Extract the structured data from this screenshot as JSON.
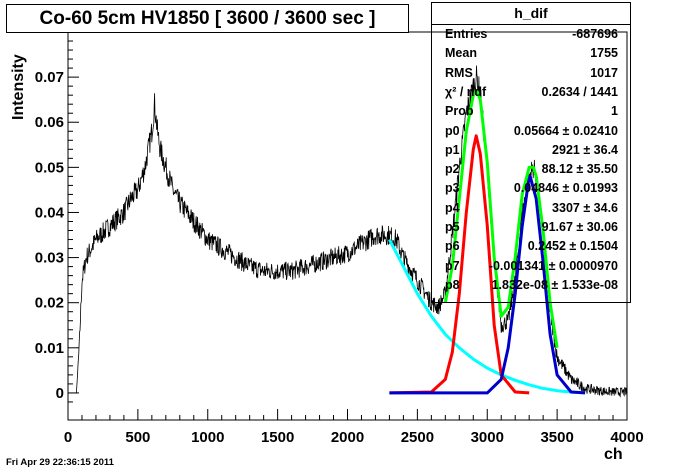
{
  "title": "Co-60 5cm HV1850 [ 3600 / 3600 sec ]",
  "timestamp": "Fri Apr 29 22:36:15 2011",
  "stats": {
    "name": "h_dif",
    "rows": [
      {
        "key": "Entries",
        "value": "-687696"
      },
      {
        "key": "Mean",
        "value": "1755"
      },
      {
        "key": "RMS",
        "value": "1017"
      },
      {
        "key": "χ² / ndf",
        "value": "0.2634 / 1441"
      },
      {
        "key": "Prob",
        "value": "1"
      },
      {
        "key": "p0",
        "value": "0.05664 ± 0.02410"
      },
      {
        "key": "p1",
        "value": "2921 ± 36.4"
      },
      {
        "key": "p2",
        "value": "88.12 ± 35.50"
      },
      {
        "key": "p3",
        "value": "0.04846 ± 0.01993"
      },
      {
        "key": "p4",
        "value": "3307 ± 34.6"
      },
      {
        "key": "p5",
        "value": "91.67 ± 30.06"
      },
      {
        "key": "p6",
        "value": "0.2452 ± 0.1504"
      },
      {
        "key": "p7",
        "value": "-0.001341 ± 0.0000970"
      },
      {
        "key": "p8",
        "value": "1.832e-08 ± 1.533e-08"
      }
    ]
  },
  "chart_data": {
    "type": "line",
    "title": "Co-60 5cm HV1850 [ 3600 / 3600 sec ]",
    "xlabel": "ch",
    "ylabel": "Intensity",
    "xlim": [
      0,
      4000
    ],
    "ylim": [
      -0.006,
      0.08
    ],
    "xticks": [
      0,
      500,
      1000,
      1500,
      2000,
      2500,
      3000,
      3500,
      4000
    ],
    "yticks": [
      0,
      0.01,
      0.02,
      0.03,
      0.04,
      0.05,
      0.06,
      0.07
    ],
    "ytick_labels": [
      "0",
      "0.01",
      "0.02",
      "0.03",
      "0.04",
      "0.05",
      "0.06",
      "0.07"
    ],
    "grid": false,
    "colors": {
      "histogram": "#000000",
      "total_fit": "#00ff00",
      "gauss1": "#ff0000",
      "gauss2": "#0000cc",
      "background": "#00ffff"
    },
    "histogram_noise": 0.0018,
    "series": [
      {
        "style": "histogram",
        "x": [
          0,
          60,
          80,
          100,
          130,
          200,
          300,
          400,
          450,
          500,
          550,
          600,
          620,
          640,
          660,
          700,
          750,
          800,
          900,
          1000,
          1100,
          1200,
          1300,
          1400,
          1500,
          1600,
          1700,
          1800,
          1900,
          2000,
          2100,
          2200,
          2250,
          2300,
          2350,
          2400,
          2500,
          2600,
          2650,
          2700,
          2750,
          2800,
          2850,
          2900,
          2925,
          2950,
          3000,
          3050,
          3100,
          3150,
          3200,
          3250,
          3300,
          3330,
          3350,
          3400,
          3450,
          3500,
          3600,
          3700,
          3800,
          3900,
          4000
        ],
        "y": [
          0,
          0,
          0.01,
          0.025,
          0.03,
          0.034,
          0.037,
          0.04,
          0.043,
          0.045,
          0.05,
          0.058,
          0.064,
          0.058,
          0.054,
          0.05,
          0.045,
          0.042,
          0.038,
          0.034,
          0.032,
          0.03,
          0.028,
          0.027,
          0.027,
          0.027,
          0.028,
          0.029,
          0.03,
          0.031,
          0.033,
          0.035,
          0.035,
          0.035,
          0.034,
          0.03,
          0.025,
          0.02,
          0.019,
          0.022,
          0.035,
          0.05,
          0.062,
          0.068,
          0.07,
          0.066,
          0.05,
          0.03,
          0.015,
          0.016,
          0.025,
          0.04,
          0.048,
          0.05,
          0.048,
          0.035,
          0.018,
          0.008,
          0.003,
          0.001,
          0.0005,
          0.0002,
          0.0002
        ]
      },
      {
        "style": "fit",
        "x": [
          2700,
          2750,
          2800,
          2850,
          2900,
          2925,
          2950,
          3000,
          3050,
          3100,
          3150,
          3200,
          3250,
          3300,
          3330,
          3350,
          3400,
          3450,
          3500
        ],
        "y": [
          0.02,
          0.028,
          0.043,
          0.058,
          0.066,
          0.067,
          0.065,
          0.051,
          0.03,
          0.017,
          0.019,
          0.03,
          0.044,
          0.05,
          0.05,
          0.048,
          0.036,
          0.02,
          0.01
        ]
      },
      {
        "style": "fit",
        "x": [
          2300,
          2600,
          2700,
          2750,
          2800,
          2850,
          2900,
          2921,
          2950,
          3000,
          3050,
          3100,
          3200,
          3300
        ],
        "y": [
          0,
          0.0002,
          0.003,
          0.009,
          0.022,
          0.04,
          0.054,
          0.057,
          0.053,
          0.037,
          0.015,
          0.004,
          0.0002,
          0
        ]
      },
      {
        "style": "fit",
        "x": [
          2300,
          3000,
          3100,
          3150,
          3200,
          3250,
          3300,
          3307,
          3350,
          3400,
          3450,
          3500,
          3600,
          3700
        ],
        "y": [
          0,
          0,
          0.003,
          0.01,
          0.022,
          0.037,
          0.048,
          0.048,
          0.043,
          0.029,
          0.013,
          0.004,
          0.0002,
          0
        ]
      },
      {
        "style": "fit",
        "x": [
          2300,
          2400,
          2500,
          2600,
          2700,
          2800,
          2900,
          3000,
          3100,
          3200,
          3300,
          3400,
          3500,
          3600,
          3700
        ],
        "y": [
          0.034,
          0.028,
          0.022,
          0.017,
          0.013,
          0.01,
          0.0075,
          0.0055,
          0.004,
          0.0028,
          0.0018,
          0.001,
          0.0005,
          0.0002,
          0
        ]
      }
    ]
  }
}
